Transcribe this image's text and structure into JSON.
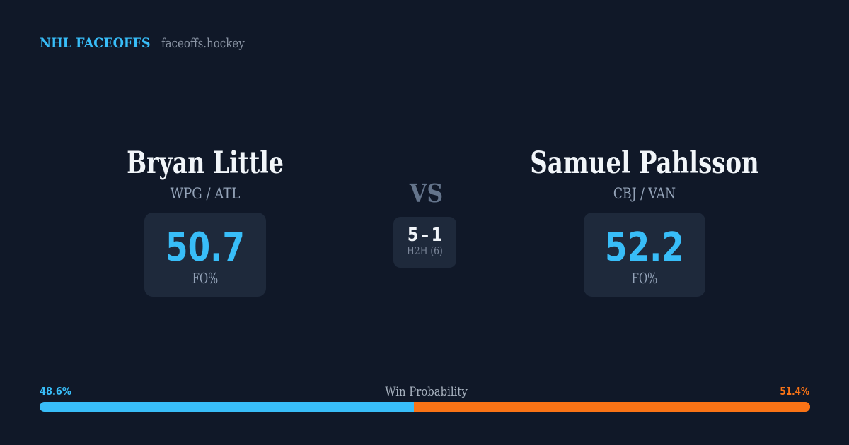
{
  "brand": {
    "title": "NHL FACEOFFS",
    "domain": "faceoffs.hockey"
  },
  "matchup": {
    "vs_label": "VS",
    "h2h": {
      "score": "5 – 1",
      "label": "H2H (6)"
    },
    "players": [
      {
        "name": "Bryan Little",
        "teams": "WPG / ATL",
        "fo_pct": "50.7",
        "stat_label": "FO%"
      },
      {
        "name": "Samuel Pahlsson",
        "teams": "CBJ / VAN",
        "fo_pct": "52.2",
        "stat_label": "FO%"
      }
    ]
  },
  "win_probability": {
    "label": "Win Probability",
    "left_pct": "48.6%",
    "right_pct": "51.4%",
    "left_color": "#38bdf8",
    "right_color": "#f97316"
  },
  "colors": {
    "background": "#101828",
    "card": "#1e293b",
    "accent_blue": "#38bdf8",
    "accent_orange": "#f97316",
    "name_text": "#f1f5f9",
    "muted_text": "#94a3b8"
  }
}
